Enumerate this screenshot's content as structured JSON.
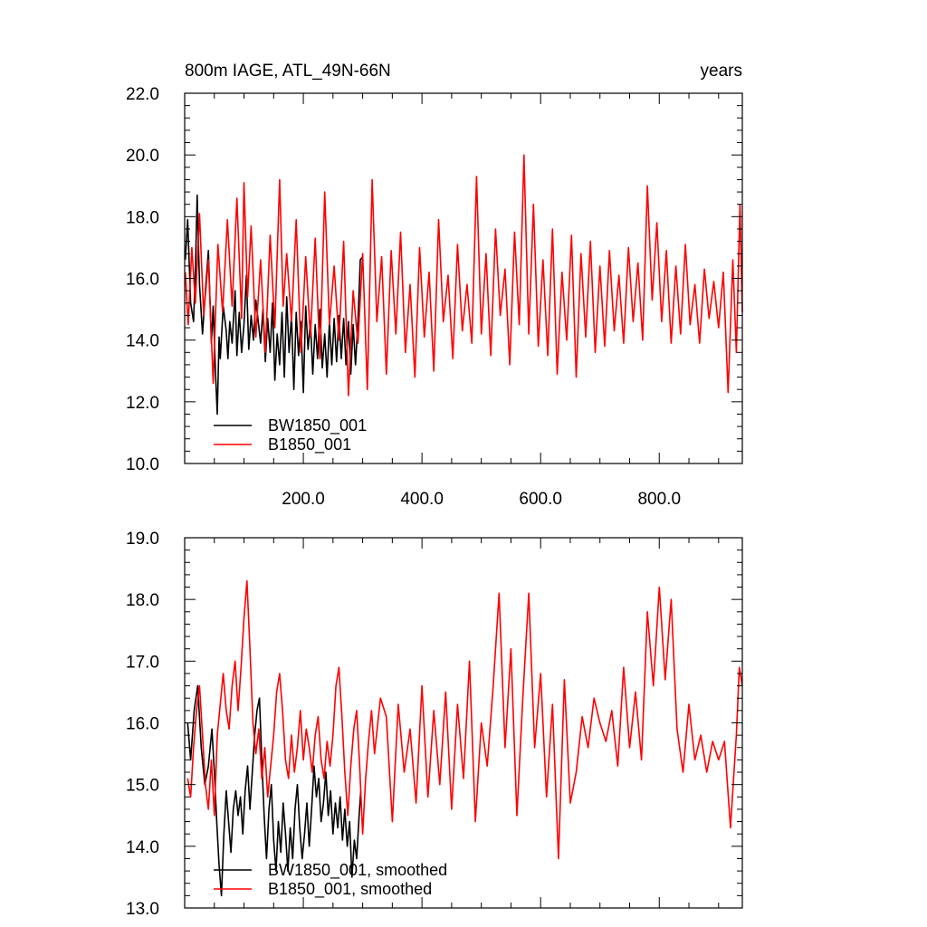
{
  "figure": {
    "title_left": "800m IAGE, ATL_49N-66N",
    "title_right": "years"
  },
  "chart_data": [
    {
      "type": "line",
      "title": "800m IAGE, ATL_49N-66N",
      "units": "years",
      "xlim": [
        0,
        940
      ],
      "ylim": [
        10,
        22
      ],
      "grid": false,
      "x_ticks": [
        200,
        400,
        600,
        800
      ],
      "x_tick_labels": [
        "200.0",
        "400.0",
        "600.0",
        "800.0"
      ],
      "y_ticks": [
        10,
        12,
        14,
        16,
        18,
        20,
        22
      ],
      "y_tick_labels": [
        "10.0",
        "12.0",
        "14.0",
        "16.0",
        "18.0",
        "20.0",
        "22.0"
      ],
      "legend_position": "bottom-left",
      "series": [
        {
          "name": "BW1850_001",
          "color": "#000000",
          "x": [
            1,
            5,
            10,
            15,
            18,
            21,
            25,
            30,
            35,
            40,
            45,
            48,
            52,
            55,
            58,
            60,
            65,
            70,
            73,
            76,
            80,
            85,
            88,
            92,
            96,
            100,
            104,
            108,
            112,
            116,
            120,
            124,
            128,
            132,
            136,
            140,
            144,
            148,
            152,
            156,
            160,
            164,
            168,
            172,
            176,
            180,
            184,
            188,
            192,
            196,
            200,
            204,
            208,
            212,
            216,
            220,
            224,
            228,
            232,
            236,
            240,
            244,
            248,
            252,
            256,
            260,
            264,
            268,
            272,
            276,
            280,
            284,
            288,
            292,
            296,
            300
          ],
          "values": [
            16.6,
            17.9,
            15.2,
            14.6,
            16.2,
            18.7,
            15.8,
            14.2,
            15.6,
            16.9,
            13.9,
            15.1,
            12.9,
            11.6,
            14.1,
            13.4,
            15.1,
            14.3,
            13.4,
            14.6,
            13.9,
            15.6,
            13.5,
            14.9,
            13.6,
            14.5,
            16.1,
            13.7,
            14.8,
            14.0,
            15.3,
            14.6,
            13.9,
            15.0,
            13.3,
            14.7,
            13.6,
            15.2,
            12.7,
            14.2,
            13.2,
            14.9,
            12.8,
            15.4,
            13.6,
            14.8,
            12.4,
            14.9,
            13.5,
            14.6,
            12.3,
            15.1,
            13.7,
            14.6,
            12.9,
            14.5,
            13.4,
            15.0,
            13.1,
            14.2,
            12.8,
            14.6,
            13.2,
            14.7,
            13.3,
            14.8,
            13.4,
            14.7,
            13.2,
            14.6,
            12.9,
            14.5,
            13.2,
            14.6,
            16.6,
            16.7
          ]
        },
        {
          "name": "B1850_001",
          "color": "#ff0000",
          "x": [
            1,
            6,
            12,
            18,
            25,
            32,
            40,
            48,
            56,
            64,
            72,
            80,
            88,
            96,
            100,
            106,
            112,
            120,
            128,
            136,
            144,
            152,
            160,
            166,
            172,
            180,
            188,
            196,
            204,
            212,
            220,
            228,
            236,
            244,
            252,
            260,
            268,
            276,
            284,
            292,
            300,
            308,
            316,
            324,
            332,
            340,
            348,
            356,
            364,
            372,
            380,
            388,
            396,
            404,
            412,
            420,
            428,
            436,
            444,
            452,
            460,
            468,
            476,
            484,
            492,
            500,
            508,
            516,
            524,
            532,
            540,
            548,
            556,
            564,
            572,
            580,
            588,
            596,
            604,
            612,
            620,
            628,
            636,
            644,
            652,
            660,
            668,
            676,
            684,
            692,
            700,
            708,
            716,
            724,
            732,
            740,
            748,
            756,
            764,
            772,
            780,
            788,
            796,
            804,
            812,
            820,
            828,
            836,
            844,
            852,
            860,
            868,
            876,
            884,
            892,
            900,
            908,
            916,
            924,
            930,
            936,
            940
          ],
          "values": [
            16.2,
            14.5,
            17.0,
            15.2,
            18.1,
            14.8,
            16.6,
            12.6,
            17.1,
            14.9,
            17.9,
            15.1,
            18.6,
            14.7,
            19.1,
            15.4,
            17.7,
            14.1,
            16.6,
            13.6,
            17.4,
            14.4,
            19.2,
            15.1,
            16.8,
            14.6,
            17.9,
            13.6,
            16.7,
            14.1,
            17.3,
            13.4,
            18.8,
            14.5,
            16.4,
            14.0,
            17.2,
            12.2,
            15.6,
            13.9,
            16.8,
            12.4,
            19.2,
            14.6,
            16.7,
            12.9,
            16.9,
            14.2,
            17.5,
            13.6,
            15.8,
            12.8,
            17.0,
            14.1,
            16.2,
            13.0,
            17.9,
            14.6,
            16.1,
            13.4,
            17.1,
            14.3,
            15.8,
            13.9,
            19.3,
            14.2,
            16.8,
            13.5,
            17.6,
            14.8,
            16.3,
            13.2,
            17.5,
            14.5,
            20.0,
            14.2,
            18.4,
            13.8,
            16.6,
            13.5,
            17.6,
            12.9,
            16.2,
            14.0,
            17.4,
            12.8,
            16.8,
            14.1,
            17.2,
            13.6,
            16.4,
            13.8,
            16.9,
            14.3,
            16.1,
            13.9,
            17.0,
            14.6,
            16.5,
            14.0,
            19.0,
            15.3,
            17.8,
            14.6,
            16.9,
            13.9,
            16.4,
            14.2,
            17.1,
            14.5,
            15.8,
            13.9,
            16.3,
            14.7,
            15.9,
            14.4,
            16.2,
            12.3,
            16.6,
            13.6,
            18.4,
            14.9
          ]
        }
      ]
    },
    {
      "type": "line",
      "xlim": [
        0,
        940
      ],
      "ylim": [
        13,
        19
      ],
      "grid": false,
      "y_ticks": [
        13,
        14,
        15,
        16,
        17,
        18,
        19
      ],
      "y_tick_labels": [
        "13.0",
        "14.0",
        "15.0",
        "16.0",
        "17.0",
        "18.0",
        "19.0"
      ],
      "legend_position": "bottom-left",
      "series": [
        {
          "name": "BW1850_001, smoothed",
          "color": "#000000",
          "x": [
            5,
            10,
            16,
            22,
            28,
            34,
            40,
            46,
            50,
            54,
            58,
            62,
            66,
            70,
            74,
            78,
            82,
            86,
            90,
            94,
            98,
            102,
            106,
            110,
            114,
            118,
            122,
            126,
            130,
            134,
            138,
            142,
            146,
            150,
            154,
            158,
            162,
            166,
            170,
            174,
            178,
            182,
            186,
            190,
            194,
            198,
            202,
            206,
            210,
            214,
            218,
            222,
            226,
            230,
            234,
            238,
            242,
            246,
            250,
            254,
            258,
            262,
            266,
            270,
            274,
            278,
            282,
            286,
            290,
            294,
            297
          ],
          "values": [
            16.0,
            15.4,
            16.2,
            16.6,
            15.6,
            15.0,
            15.3,
            15.9,
            15.2,
            14.4,
            13.7,
            13.2,
            14.2,
            14.9,
            14.4,
            13.9,
            14.6,
            14.9,
            14.5,
            14.8,
            14.2,
            14.9,
            15.3,
            14.6,
            15.2,
            15.8,
            16.2,
            16.4,
            15.4,
            14.5,
            13.8,
            14.6,
            15.0,
            14.1,
            13.6,
            14.4,
            13.9,
            14.7,
            14.2,
            13.6,
            14.3,
            13.8,
            14.6,
            15.0,
            14.3,
            13.8,
            14.2,
            14.7,
            14.0,
            14.6,
            15.3,
            14.8,
            15.1,
            14.4,
            14.7,
            15.2,
            14.5,
            14.9,
            14.2,
            14.7,
            14.3,
            14.8,
            14.1,
            14.6,
            14.0,
            14.4,
            13.5,
            14.1,
            13.8,
            14.5,
            14.9
          ]
        },
        {
          "name": "B1850_001, smoothed",
          "color": "#ff0000",
          "x": [
            5,
            10,
            15,
            20,
            25,
            30,
            35,
            40,
            45,
            50,
            55,
            60,
            65,
            70,
            75,
            80,
            85,
            90,
            95,
            100,
            105,
            110,
            115,
            120,
            125,
            130,
            135,
            140,
            145,
            150,
            155,
            160,
            165,
            170,
            175,
            180,
            185,
            190,
            195,
            200,
            205,
            210,
            215,
            220,
            225,
            230,
            235,
            240,
            245,
            250,
            255,
            260,
            265,
            270,
            275,
            280,
            285,
            290,
            295,
            300,
            305,
            310,
            315,
            320,
            330,
            340,
            350,
            360,
            370,
            380,
            390,
            400,
            410,
            420,
            430,
            440,
            450,
            460,
            470,
            480,
            490,
            500,
            510,
            520,
            530,
            540,
            550,
            560,
            570,
            580,
            590,
            600,
            610,
            620,
            630,
            640,
            650,
            660,
            670,
            680,
            690,
            700,
            710,
            720,
            730,
            740,
            750,
            760,
            770,
            780,
            790,
            800,
            810,
            820,
            830,
            840,
            850,
            860,
            870,
            880,
            890,
            900,
            910,
            920,
            930,
            935,
            940
          ],
          "values": [
            15.1,
            14.8,
            15.6,
            16.2,
            16.6,
            15.8,
            15.0,
            14.6,
            15.4,
            14.5,
            15.8,
            16.3,
            16.8,
            16.2,
            15.9,
            16.6,
            17.0,
            16.2,
            16.9,
            17.7,
            18.3,
            17.2,
            16.0,
            15.5,
            15.9,
            15.1,
            15.6,
            14.8,
            15.3,
            15.8,
            16.5,
            16.8,
            16.2,
            15.4,
            15.1,
            15.8,
            15.2,
            15.6,
            16.2,
            15.4,
            15.9,
            15.6,
            15.2,
            15.8,
            16.1,
            15.4,
            15.1,
            15.7,
            15.3,
            15.8,
            16.6,
            16.9,
            16.1,
            15.2,
            14.5,
            15.3,
            15.9,
            16.2,
            15.3,
            14.2,
            15.1,
            15.7,
            16.2,
            15.5,
            16.4,
            16.1,
            14.4,
            16.3,
            15.2,
            15.9,
            14.7,
            16.6,
            14.8,
            16.2,
            15.0,
            16.5,
            14.6,
            16.3,
            15.1,
            17.0,
            14.4,
            16.0,
            15.3,
            16.6,
            18.1,
            15.6,
            17.2,
            14.5,
            16.4,
            18.1,
            15.6,
            16.8,
            14.8,
            16.3,
            13.8,
            16.7,
            14.7,
            15.2,
            16.1,
            15.6,
            16.4,
            16.0,
            15.7,
            16.2,
            15.3,
            16.9,
            15.6,
            16.5,
            15.4,
            17.8,
            16.6,
            18.2,
            16.7,
            18.0,
            15.9,
            15.2,
            16.3,
            15.4,
            15.8,
            15.2,
            15.7,
            15.4,
            15.7,
            14.3,
            15.8,
            16.9,
            16.6
          ]
        }
      ]
    }
  ]
}
